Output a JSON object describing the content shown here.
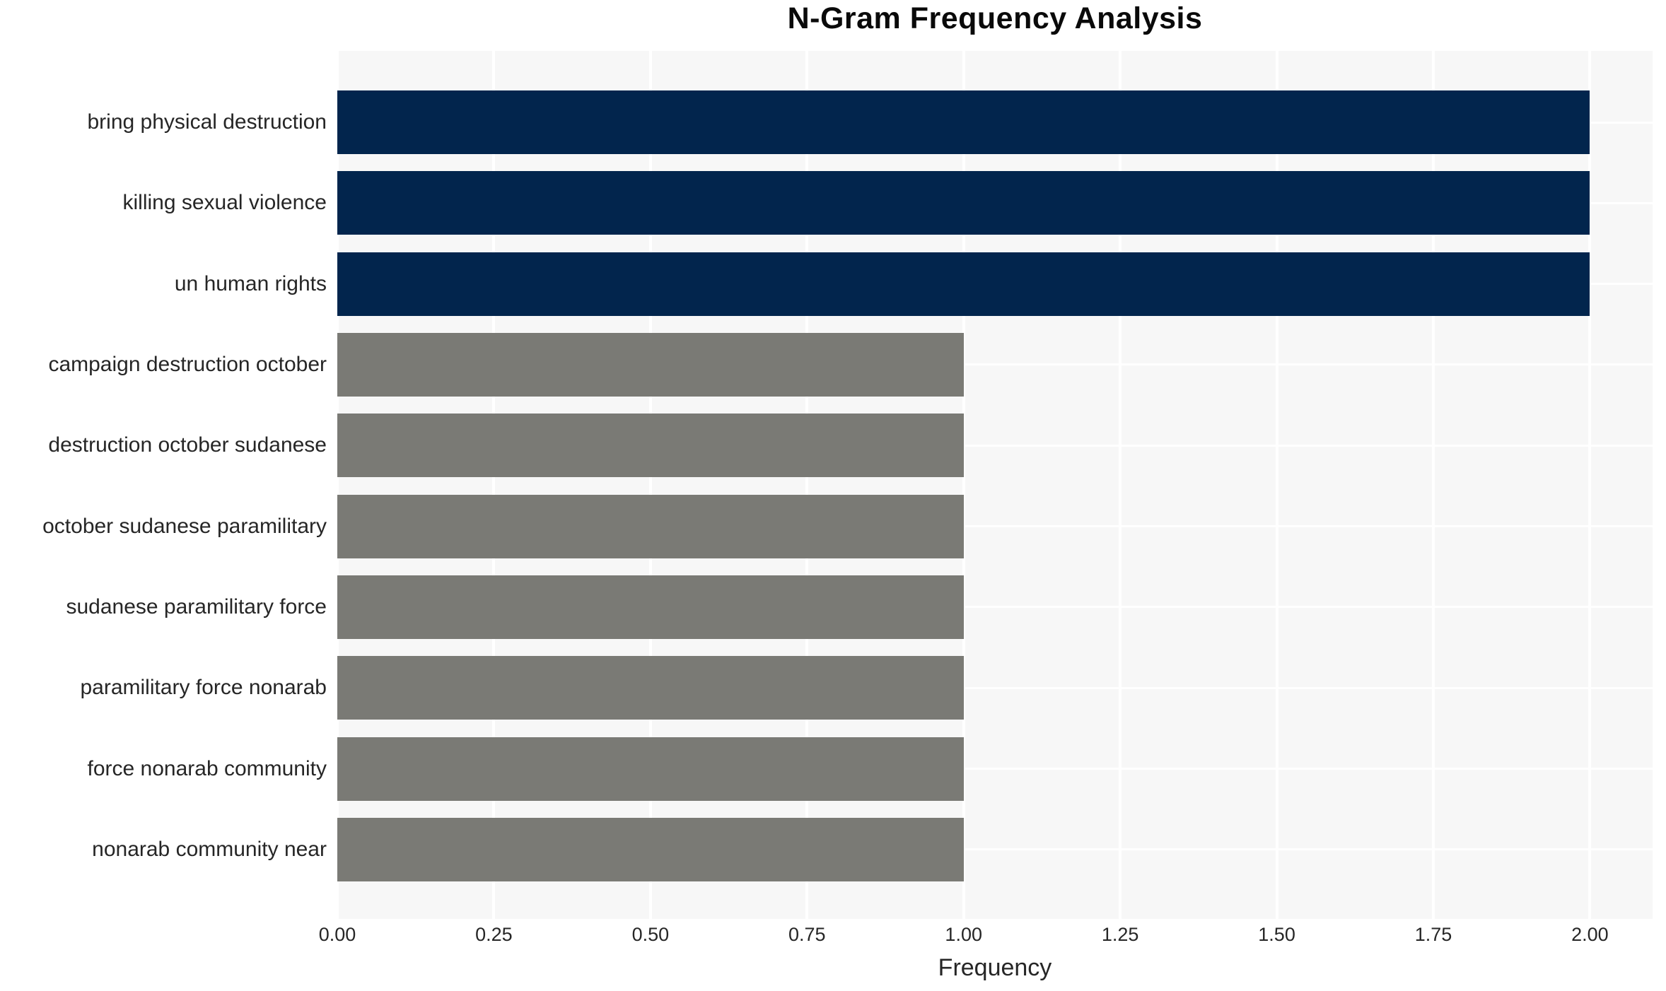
{
  "chart_data": {
    "type": "bar",
    "orientation": "horizontal",
    "title": "N-Gram Frequency Analysis",
    "xlabel": "Frequency",
    "ylabel": "",
    "categories": [
      "bring physical destruction",
      "killing sexual violence",
      "un human rights",
      "campaign destruction october",
      "destruction october sudanese",
      "october sudanese paramilitary",
      "sudanese paramilitary force",
      "paramilitary force nonarab",
      "force nonarab community",
      "nonarab community near"
    ],
    "values": [
      2,
      2,
      2,
      1,
      1,
      1,
      1,
      1,
      1,
      1
    ],
    "bar_colors": [
      "#02254d",
      "#02254d",
      "#02254d",
      "#7a7a75",
      "#7a7a75",
      "#7a7a75",
      "#7a7a75",
      "#7a7a75",
      "#7a7a75",
      "#7a7a75"
    ],
    "xlim": [
      0,
      2.1
    ],
    "xtick_labels": [
      "0.00",
      "0.25",
      "0.50",
      "0.75",
      "1.00",
      "1.25",
      "1.50",
      "1.75",
      "2.00"
    ],
    "xtick_values": [
      0,
      0.25,
      0.5,
      0.75,
      1.0,
      1.25,
      1.5,
      1.75,
      2.0
    ],
    "grid": true,
    "grid_color": "#ffffff",
    "plot_background": "#f7f7f7",
    "figure_background": "#ffffff",
    "legend": false,
    "colors": {
      "high_frequency_bar": "#02254d",
      "low_frequency_bar": "#7a7a75",
      "title_text": "#0a0a0a",
      "axis_text": "#262626"
    }
  }
}
